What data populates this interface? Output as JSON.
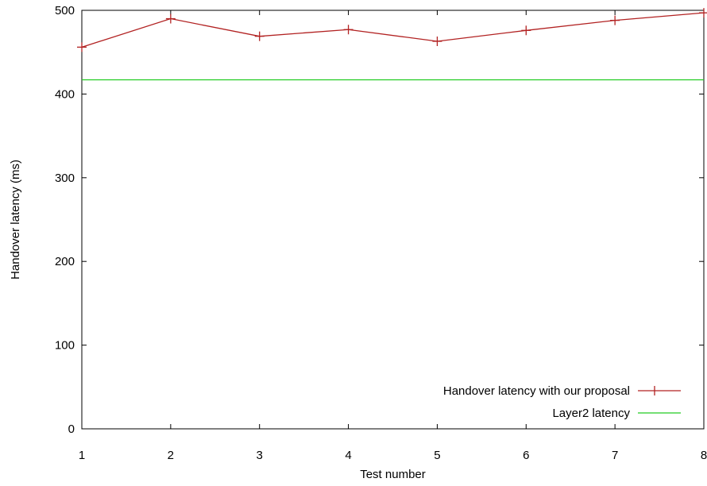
{
  "chart_data": {
    "type": "line",
    "title": "",
    "xlabel": "Test number",
    "ylabel": "Handover latency (ms)",
    "x": [
      1,
      2,
      3,
      4,
      5,
      6,
      7,
      8
    ],
    "x_ticks": [
      "1",
      "2",
      "3",
      "4",
      "5",
      "6",
      "7",
      "8"
    ],
    "y_ticks": [
      "0",
      "100",
      "200",
      "300",
      "400",
      "500"
    ],
    "xlim": [
      1,
      8
    ],
    "ylim": [
      0,
      500
    ],
    "grid": false,
    "legend_position": "bottom-right",
    "series": [
      {
        "name": "Handover latency with our proposal",
        "color": "#b22222",
        "marker": "plus",
        "values": [
          456,
          490,
          469,
          477,
          463,
          476,
          488,
          497
        ]
      },
      {
        "name": "Layer2 latency",
        "color": "#22cc22",
        "marker": "none",
        "values": [
          417,
          417,
          417,
          417,
          417,
          417,
          417,
          417
        ]
      }
    ]
  }
}
